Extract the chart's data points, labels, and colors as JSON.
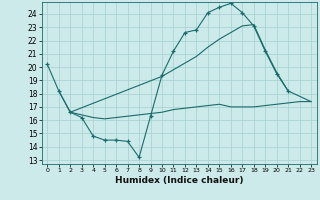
{
  "xlabel": "Humidex (Indice chaleur)",
  "background_color": "#cceaea",
  "grid_color": "#aad4d4",
  "line_color": "#1a6b6b",
  "xlim": [
    -0.5,
    23.5
  ],
  "ylim": [
    12.7,
    24.9
  ],
  "yticks": [
    13,
    14,
    15,
    16,
    17,
    18,
    19,
    20,
    21,
    22,
    23,
    24
  ],
  "xticks": [
    0,
    1,
    2,
    3,
    4,
    5,
    6,
    7,
    8,
    9,
    10,
    11,
    12,
    13,
    14,
    15,
    16,
    17,
    18,
    19,
    20,
    21,
    22,
    23
  ],
  "series_main": {
    "x": [
      0,
      1,
      2,
      3,
      4,
      5,
      6,
      7,
      8,
      9,
      10,
      11,
      12,
      13,
      14,
      15,
      16,
      17,
      18,
      19,
      20,
      21
    ],
    "y": [
      20.2,
      18.2,
      16.6,
      16.2,
      14.8,
      14.5,
      14.5,
      14.4,
      13.2,
      16.3,
      19.4,
      21.2,
      22.6,
      22.8,
      24.1,
      24.5,
      24.8,
      24.1,
      23.1,
      21.2,
      19.5,
      18.2
    ]
  },
  "series_upper": {
    "x": [
      2,
      10,
      11,
      12,
      13,
      14,
      15,
      16,
      17,
      18,
      19,
      20,
      21,
      23
    ],
    "y": [
      16.6,
      19.3,
      19.8,
      20.3,
      20.8,
      21.5,
      22.1,
      22.6,
      23.1,
      23.2,
      21.3,
      19.6,
      18.2,
      17.4
    ]
  },
  "series_lower": {
    "x": [
      1,
      2,
      3,
      4,
      5,
      6,
      7,
      8,
      9,
      10,
      11,
      12,
      13,
      14,
      15,
      16,
      17,
      18,
      19,
      20,
      21,
      22,
      23
    ],
    "y": [
      18.2,
      16.6,
      16.4,
      16.2,
      16.1,
      16.2,
      16.3,
      16.4,
      16.5,
      16.6,
      16.8,
      16.9,
      17.0,
      17.1,
      17.2,
      17.0,
      17.0,
      17.0,
      17.1,
      17.2,
      17.3,
      17.4,
      17.4
    ]
  }
}
